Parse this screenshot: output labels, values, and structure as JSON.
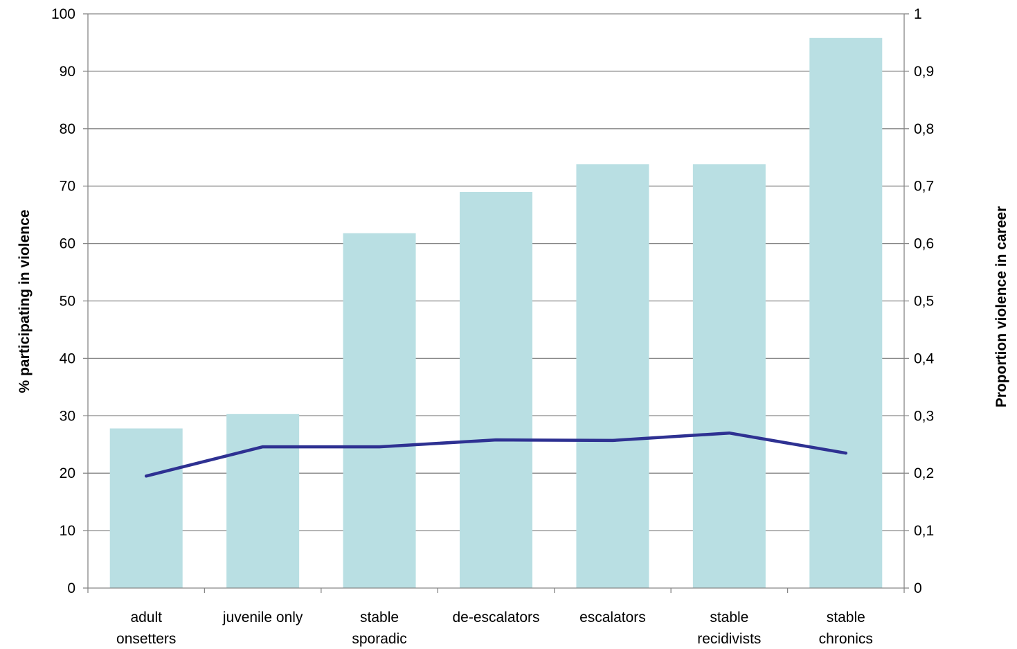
{
  "chart_data": {
    "type": "bar",
    "categories": [
      [
        "adult",
        "onsetters"
      ],
      [
        "juvenile only"
      ],
      [
        "stable",
        "sporadic"
      ],
      [
        "de-escalators"
      ],
      [
        "escalators"
      ],
      [
        "stable",
        "recidivists"
      ],
      [
        "stable",
        "chronics"
      ]
    ],
    "series": [
      {
        "type": "bar",
        "axis": "left",
        "values": [
          27.8,
          30.3,
          61.8,
          69.0,
          73.8,
          73.8,
          95.8
        ],
        "color": "#b9dfe3"
      },
      {
        "type": "line",
        "axis": "right",
        "values": [
          0.195,
          0.246,
          0.246,
          0.258,
          0.257,
          0.27,
          0.235
        ],
        "color": "#2e3192"
      }
    ],
    "ylabel": "% participating in violence",
    "y2label": "Proportion  violence in career",
    "ylim": [
      0,
      100
    ],
    "y2lim": [
      0,
      1
    ],
    "yticks": [
      "0",
      "10",
      "20",
      "30",
      "40",
      "50",
      "60",
      "70",
      "80",
      "90",
      "100"
    ],
    "y2ticks": [
      "0",
      "0,1",
      "0,2",
      "0,3",
      "0,4",
      "0,5",
      "0,6",
      "0,7",
      "0,8",
      "0,9",
      "1"
    ],
    "grid": true,
    "gridColor": "#868686",
    "axisColor": "#868686"
  }
}
